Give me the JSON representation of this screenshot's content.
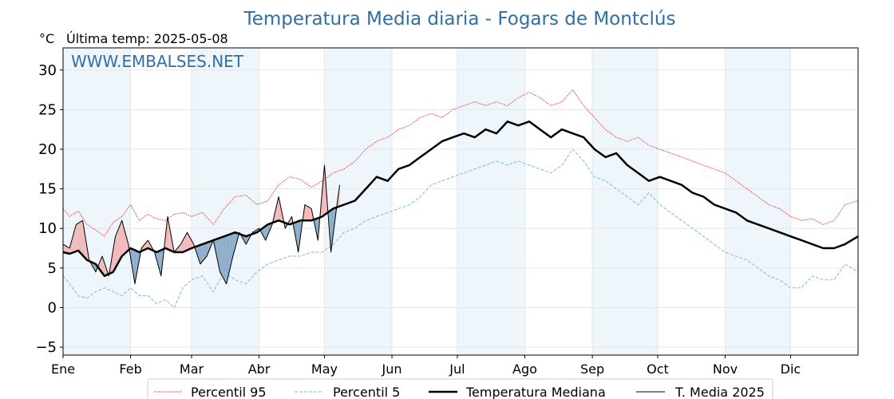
{
  "colors": {
    "title": "#2f6fa3",
    "watermark": "#2f6fa3",
    "p95": "#e8191e",
    "p5": "#8fc6dd",
    "median": "#000000",
    "current": "#000000",
    "above_fill": "#f2b8b9",
    "below_fill": "#8aabc9",
    "month_band": "#eef5fb",
    "grid": "#e6e6e6"
  },
  "chart_data": {
    "type": "line",
    "title": "Temperatura Media diaria - Fogars de Montclús",
    "unit_label": "°C",
    "last_temp": "Última temp: 2025-05-08",
    "watermark": "WWW.EMBALSES.NET",
    "ylim": [
      -6,
      32.8
    ],
    "yticks": [
      -5,
      0,
      5,
      10,
      15,
      20,
      25,
      30
    ],
    "ytick_labels": [
      "−5",
      "0",
      "5",
      "10",
      "15",
      "20",
      "25",
      "30"
    ],
    "xlim": [
      1,
      366
    ],
    "months": [
      {
        "label": "Ene",
        "day": 1
      },
      {
        "label": "Feb",
        "day": 32
      },
      {
        "label": "Mar",
        "day": 60
      },
      {
        "label": "Abr",
        "day": 91
      },
      {
        "label": "May",
        "day": 121
      },
      {
        "label": "Jun",
        "day": 152
      },
      {
        "label": "Jul",
        "day": 182
      },
      {
        "label": "Ago",
        "day": 213
      },
      {
        "label": "Sep",
        "day": 244
      },
      {
        "label": "Oct",
        "day": 274
      },
      {
        "label": "Nov",
        "day": 305
      },
      {
        "label": "Dic",
        "day": 335
      }
    ],
    "shaded_months": [
      "Ene",
      "Mar",
      "May",
      "Jul",
      "Sep",
      "Nov"
    ],
    "grid": true,
    "legend_position": "bottom-center",
    "series": [
      {
        "name": "Percentil 95",
        "style": "dotted-red",
        "x": [
          1,
          4,
          8,
          12,
          16,
          20,
          24,
          28,
          32,
          36,
          40,
          44,
          48,
          52,
          56,
          60,
          65,
          70,
          75,
          80,
          85,
          90,
          95,
          100,
          105,
          110,
          115,
          120,
          125,
          130,
          135,
          140,
          145,
          150,
          155,
          160,
          165,
          170,
          175,
          180,
          185,
          190,
          195,
          200,
          205,
          210,
          215,
          220,
          225,
          230,
          235,
          240,
          245,
          250,
          255,
          260,
          265,
          270,
          275,
          280,
          285,
          290,
          295,
          300,
          305,
          310,
          315,
          320,
          325,
          330,
          335,
          340,
          345,
          350,
          355,
          360,
          366
        ],
        "y": [
          12.5,
          11.5,
          12.2,
          10.5,
          9.8,
          9.0,
          10.8,
          11.5,
          13.0,
          11.0,
          11.8,
          11.2,
          11.0,
          11.8,
          12.0,
          11.5,
          12.0,
          10.5,
          12.5,
          14.0,
          14.2,
          13.0,
          13.5,
          15.5,
          16.5,
          16.2,
          15.2,
          16.0,
          17.0,
          17.5,
          18.5,
          20.0,
          21.0,
          21.5,
          22.5,
          23.0,
          24.0,
          24.5,
          24.0,
          25.0,
          25.5,
          26.0,
          25.5,
          26.0,
          25.5,
          26.5,
          27.2,
          26.5,
          25.5,
          26.0,
          27.5,
          25.5,
          24.0,
          22.5,
          21.5,
          21.0,
          21.5,
          20.5,
          20.0,
          19.5,
          19.0,
          18.5,
          18.0,
          17.5,
          17.0,
          16.0,
          15.0,
          14.0,
          13.0,
          12.5,
          11.5,
          11.0,
          11.2,
          10.5,
          11.0,
          13.0,
          13.5
        ]
      },
      {
        "name": "Percentil 5",
        "style": "dashed-lightblue",
        "x": [
          1,
          4,
          8,
          12,
          16,
          20,
          24,
          28,
          32,
          36,
          40,
          44,
          48,
          52,
          56,
          60,
          65,
          70,
          75,
          80,
          85,
          90,
          95,
          100,
          105,
          110,
          115,
          120,
          125,
          130,
          135,
          140,
          145,
          150,
          155,
          160,
          165,
          170,
          175,
          180,
          185,
          190,
          195,
          200,
          205,
          210,
          215,
          220,
          225,
          230,
          235,
          240,
          245,
          250,
          255,
          260,
          265,
          270,
          275,
          280,
          285,
          290,
          295,
          300,
          305,
          310,
          315,
          320,
          325,
          330,
          335,
          340,
          345,
          350,
          355,
          360,
          366
        ],
        "y": [
          4.0,
          3.0,
          1.5,
          1.2,
          2.0,
          2.5,
          2.0,
          1.5,
          2.5,
          1.5,
          1.5,
          0.5,
          1.0,
          0.0,
          2.5,
          3.5,
          4.0,
          2.0,
          4.5,
          3.5,
          3.0,
          4.5,
          5.5,
          6.0,
          6.5,
          6.5,
          7.0,
          7.0,
          8.0,
          9.5,
          10.0,
          11.0,
          11.5,
          12.0,
          12.5,
          13.0,
          14.0,
          15.5,
          16.0,
          16.5,
          17.0,
          17.5,
          18.0,
          18.5,
          18.0,
          18.5,
          18.0,
          17.5,
          17.0,
          18.0,
          20.0,
          18.5,
          16.5,
          16.0,
          15.0,
          14.0,
          13.0,
          14.5,
          13.0,
          12.0,
          11.0,
          10.0,
          9.0,
          8.0,
          7.0,
          6.5,
          6.0,
          5.0,
          4.0,
          3.5,
          2.5,
          2.5,
          4.0,
          3.5,
          3.5,
          5.5,
          4.5
        ]
      },
      {
        "name": "Temperatura Mediana",
        "style": "thick-black",
        "x": [
          1,
          4,
          8,
          12,
          16,
          20,
          24,
          28,
          32,
          36,
          40,
          44,
          48,
          52,
          56,
          60,
          65,
          70,
          75,
          80,
          85,
          90,
          95,
          100,
          105,
          110,
          115,
          120,
          125,
          130,
          135,
          140,
          145,
          150,
          155,
          160,
          165,
          170,
          175,
          180,
          185,
          190,
          195,
          200,
          205,
          210,
          215,
          220,
          225,
          230,
          235,
          240,
          245,
          250,
          255,
          260,
          265,
          270,
          275,
          280,
          285,
          290,
          295,
          300,
          305,
          310,
          315,
          320,
          325,
          330,
          335,
          340,
          345,
          350,
          355,
          360,
          366
        ],
        "y": [
          7.0,
          6.8,
          7.2,
          6.0,
          5.5,
          4.0,
          4.5,
          6.5,
          7.5,
          7.0,
          7.5,
          7.0,
          7.5,
          7.0,
          7.0,
          7.5,
          8.0,
          8.5,
          9.0,
          9.5,
          9.0,
          9.5,
          10.5,
          11.0,
          10.5,
          11.0,
          11.0,
          11.5,
          12.5,
          13.0,
          13.5,
          15.0,
          16.5,
          16.0,
          17.5,
          18.0,
          19.0,
          20.0,
          21.0,
          21.5,
          22.0,
          21.5,
          22.5,
          22.0,
          23.5,
          23.0,
          23.5,
          22.5,
          21.5,
          22.5,
          22.0,
          21.5,
          20.0,
          19.0,
          19.5,
          18.0,
          17.0,
          16.0,
          16.5,
          16.0,
          15.5,
          14.5,
          14.0,
          13.0,
          12.5,
          12.0,
          11.0,
          10.5,
          10.0,
          9.5,
          9.0,
          8.5,
          8.0,
          7.5,
          7.5,
          8.0,
          9.0
        ]
      },
      {
        "name": "T. Media 2025",
        "style": "thin-black",
        "x": [
          1,
          4,
          7,
          10,
          13,
          16,
          19,
          22,
          25,
          28,
          31,
          34,
          37,
          40,
          43,
          46,
          49,
          52,
          55,
          58,
          61,
          64,
          67,
          70,
          73,
          76,
          79,
          82,
          85,
          88,
          91,
          94,
          97,
          100,
          103,
          106,
          109,
          112,
          115,
          118,
          121,
          124,
          127,
          128
        ],
        "y": [
          8.0,
          7.5,
          10.5,
          11.0,
          6.0,
          4.5,
          6.5,
          4.0,
          9.0,
          11.0,
          8.0,
          3.0,
          7.5,
          8.5,
          7.0,
          4.0,
          11.5,
          7.0,
          8.0,
          9.5,
          8.0,
          5.5,
          6.5,
          8.5,
          4.5,
          3.0,
          6.5,
          9.5,
          8.0,
          9.5,
          10.0,
          8.5,
          10.5,
          14.0,
          10.0,
          11.5,
          7.0,
          13.0,
          12.5,
          8.5,
          18.0,
          7.0,
          13.5,
          15.5
        ]
      }
    ],
    "legend": [
      "Percentil 95",
      "Percentil 5",
      "Temperatura Mediana",
      "T. Media 2025"
    ]
  }
}
